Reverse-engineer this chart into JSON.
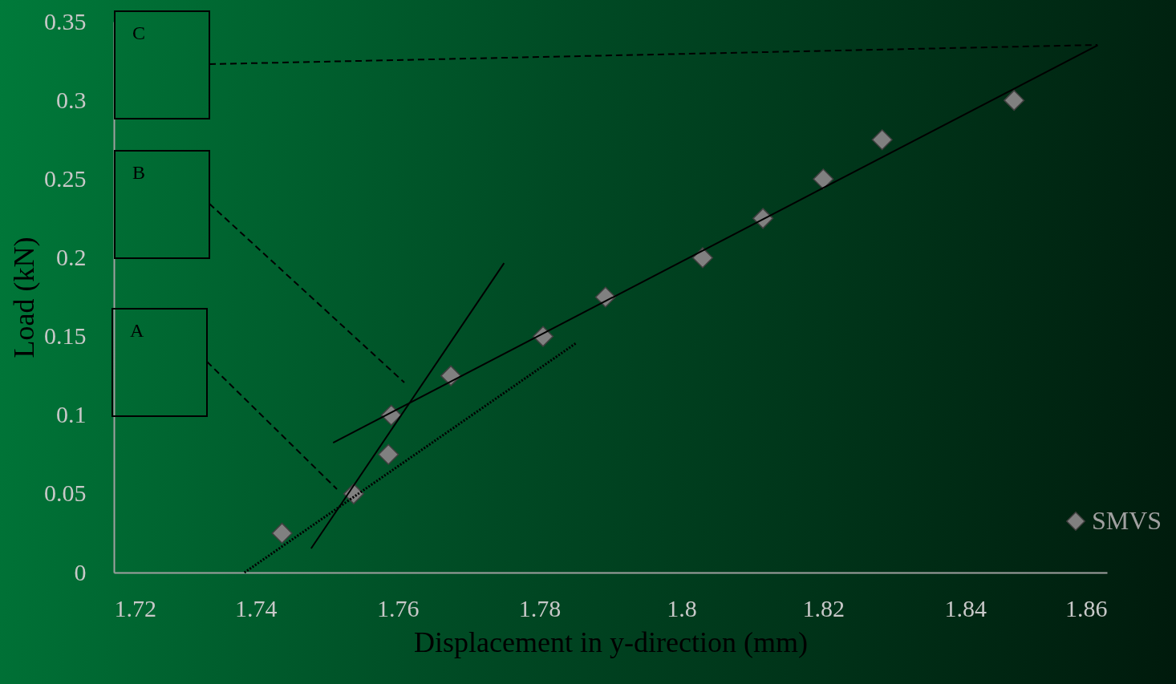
{
  "chart_data": {
    "type": "scatter",
    "xlabel": "Displacement in y-direction (mm)",
    "ylabel": "Load (kN)",
    "xlim": [
      1.72,
      1.86
    ],
    "xticks": [
      1.72,
      1.74,
      1.76,
      1.78,
      1.8,
      1.82,
      1.84,
      1.86
    ],
    "ylim": [
      0,
      0.35
    ],
    "yticks": [
      0,
      0.05,
      0.1,
      0.15,
      0.2,
      0.25,
      0.3,
      0.35
    ],
    "grid": false,
    "legend": "right",
    "x": [
      1.7437,
      1.7538,
      1.7587,
      1.7591,
      1.7675,
      1.7805,
      1.7893,
      1.803,
      1.8115,
      1.82,
      1.8283,
      1.8469
    ],
    "series": [
      {
        "name": "SMVS",
        "color": "#808080",
        "marker": "diamond",
        "values": [
          0.025,
          0.05,
          0.075,
          0.1,
          0.125,
          0.15,
          0.175,
          0.2,
          0.225,
          0.25,
          0.275,
          0.3
        ]
      },
      {
        "type": "line",
        "color": "#000000",
        "line_style": "solid",
        "x": [
          1.7509,
          1.8587
        ],
        "values": [
          0.0825,
          0.335
        ]
      },
      {
        "type": "line",
        "color": "#000000",
        "line_style": "solid",
        "x": [
          1.7478,
          1.775
        ],
        "values": [
          0.0153,
          0.1966
        ]
      },
      {
        "type": "line",
        "color": "#000000",
        "line_style": "dotted",
        "x": [
          1.7384,
          1.7851
        ],
        "values": [
          0,
          0.1456
        ]
      }
    ],
    "annotations": [
      "A",
      "B",
      "C"
    ]
  }
}
